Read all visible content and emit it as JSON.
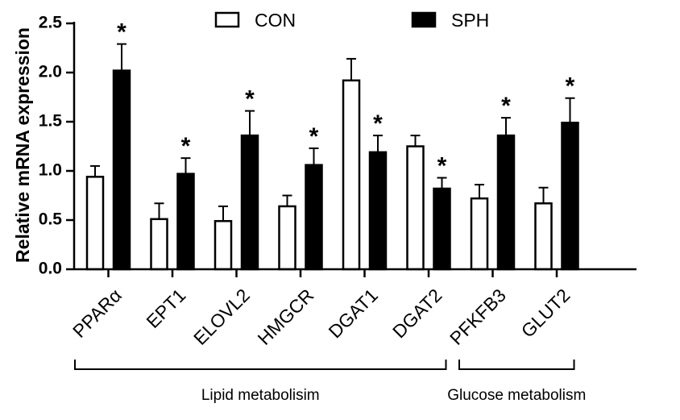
{
  "chart_data": {
    "type": "bar",
    "ylabel": "Relative mRNA expression",
    "xlabel": "",
    "ylim": [
      0,
      2.5
    ],
    "yticks": [
      "0.0",
      "0.5",
      "1.0",
      "1.5",
      "2.0",
      "2.5"
    ],
    "categories": [
      "PPARα",
      "EPT1",
      "ELOVL2",
      "HMGCR",
      "DGAT1",
      "DGAT2",
      "PFKFB3",
      "GLUT2"
    ],
    "series": [
      {
        "name": "CON",
        "color": "#ffffff",
        "values": [
          0.94,
          0.51,
          0.49,
          0.64,
          1.92,
          1.25,
          0.72,
          0.67
        ],
        "errors": [
          0.11,
          0.16,
          0.15,
          0.11,
          0.22,
          0.11,
          0.14,
          0.16
        ]
      },
      {
        "name": "SPH",
        "color": "#000000",
        "values": [
          2.02,
          0.97,
          1.36,
          1.06,
          1.19,
          0.82,
          1.36,
          1.49
        ],
        "errors": [
          0.27,
          0.16,
          0.25,
          0.17,
          0.17,
          0.11,
          0.18,
          0.25
        ]
      }
    ],
    "significance": {
      "marker": "*",
      "sph_marked": [
        true,
        true,
        true,
        true,
        true,
        true,
        true,
        true
      ]
    },
    "legend": {
      "placement": "top",
      "entries": [
        "CON",
        "SPH"
      ]
    },
    "grid": false,
    "groups": [
      {
        "label": "Lipid metabolisim",
        "start_index": 0,
        "end_index": 5
      },
      {
        "label": "Glucose metabolism",
        "start_index": 6,
        "end_index": 7
      }
    ]
  }
}
